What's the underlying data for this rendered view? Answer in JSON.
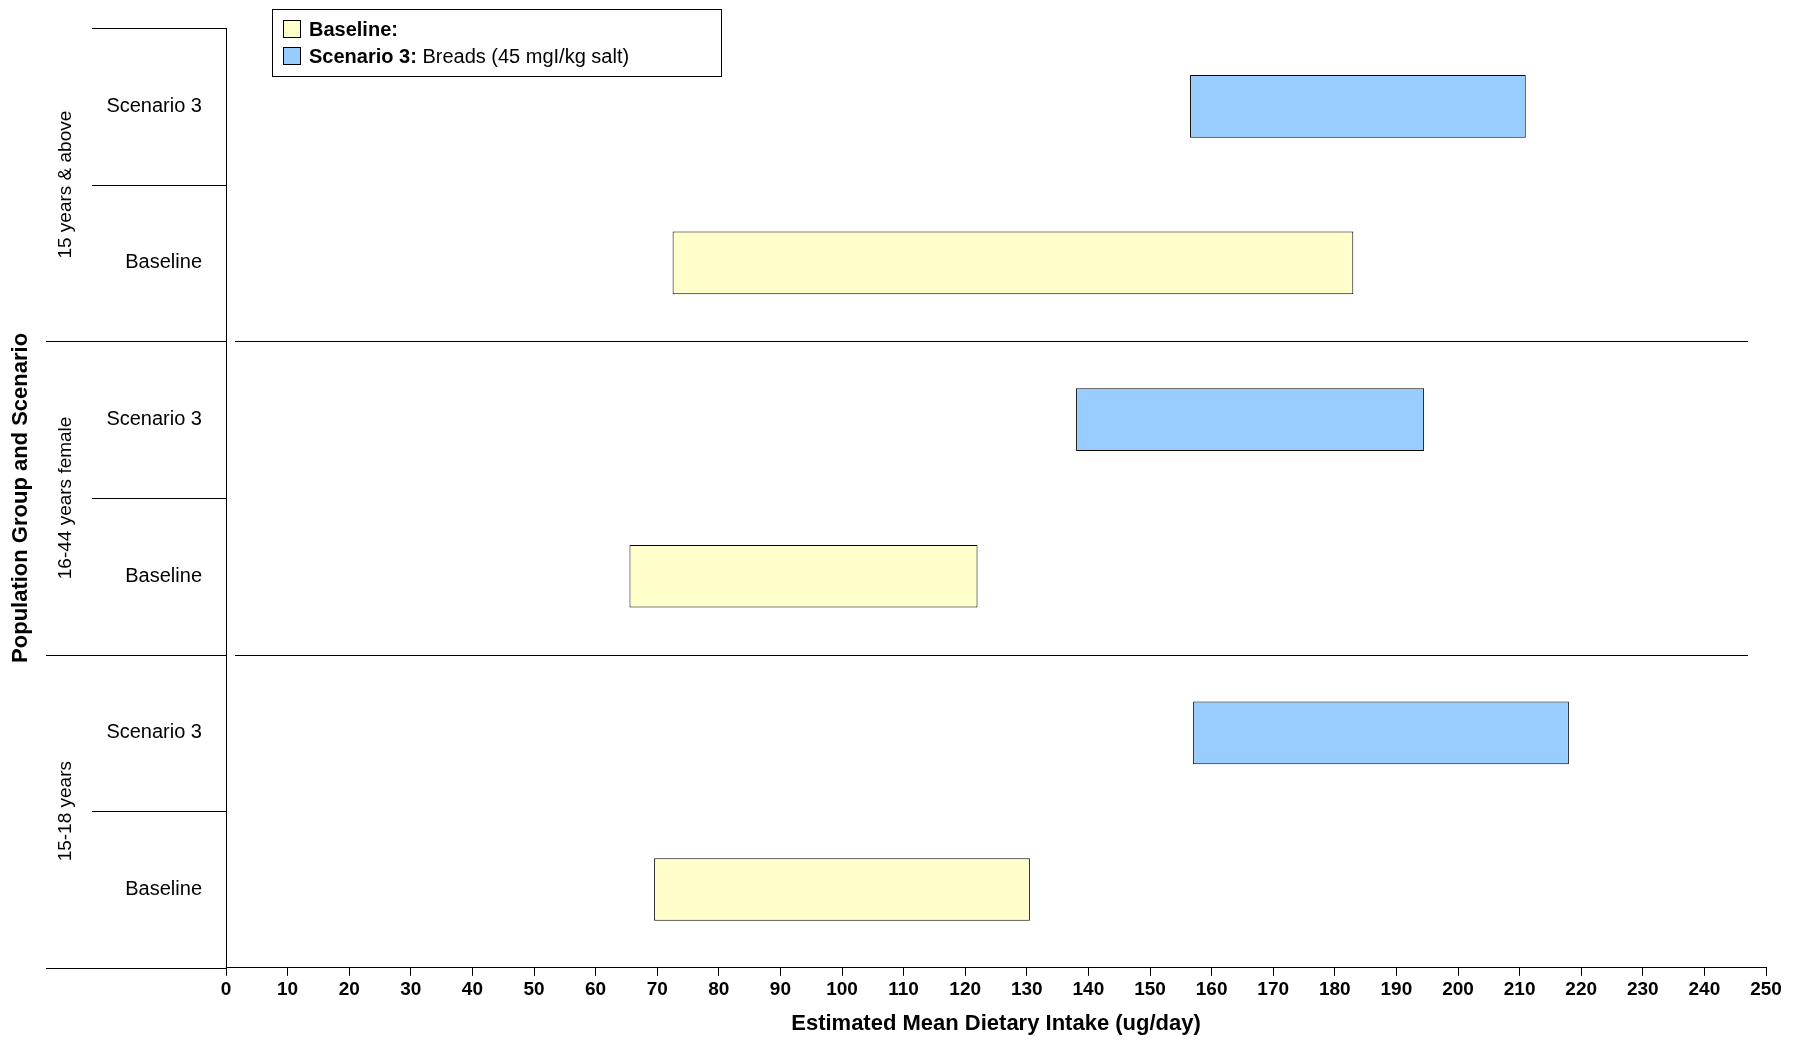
{
  "chart_data": {
    "type": "bar",
    "orientation": "horizontal",
    "xlabel": "Estimated Mean Dietary Intake (ug/day)",
    "ylabel": "Population Group and Scenario",
    "categories": [
      "Scenario 3",
      "Baseline",
      "Scenario 3",
      "Baseline",
      "Scenario 3",
      "Baseline"
    ],
    "series": [
      {
        "name": "Baseline:",
        "color": "#ffffcc",
        "values": [
          null,
          110.5,
          null,
          56.5,
          null,
          61
        ],
        "base": [
          null,
          72.5,
          null,
          65.5,
          null,
          69.5
        ]
      },
      {
        "name": "Scenario 3: Breads (45 mgI/kg salt)",
        "color": "#99ccff",
        "values": [
          54.5,
          null,
          56.5,
          null,
          61,
          null
        ],
        "base": [
          156.5,
          null,
          138,
          null,
          157,
          null
        ]
      }
    ],
    "annotations": [
      "15 years & above",
      "16-44 years female",
      "15-18 years"
    ],
    "xlim": [
      0,
      250
    ],
    "xticks": [
      0,
      10,
      20,
      30,
      40,
      50,
      60,
      70,
      80,
      90,
      100,
      110,
      120,
      130,
      140,
      150,
      160,
      170,
      180,
      190,
      200,
      210,
      220,
      230,
      240,
      250
    ],
    "grid": false,
    "legend": "top left"
  }
}
